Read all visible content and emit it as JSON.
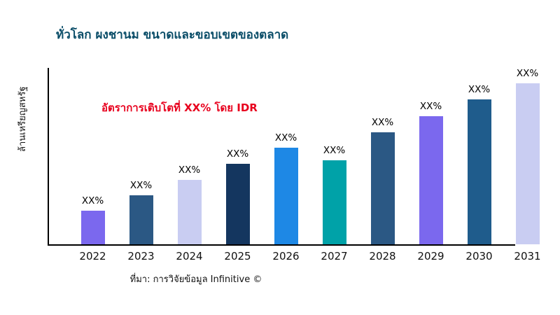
{
  "chart_data": {
    "type": "bar",
    "title": "ทั่วโลก ผงชานม ขนาดและขอบเขตของตลาด",
    "title_color": "#0a4d68",
    "xlabel": "",
    "ylabel": "ล้านเหรียญสหรัฐ",
    "annotation": "อัตราการเติบโตที่ XX% โดย IDR",
    "annotation_color": "#e8001d",
    "categories": [
      "2022",
      "2023",
      "2024",
      "2025",
      "2026",
      "2027",
      "2028",
      "2029",
      "2030",
      "2031"
    ],
    "bar_labels": [
      "XX%",
      "XX%",
      "XX%",
      "XX%",
      "XX%",
      "XX%",
      "XX%",
      "XX%",
      "XX%",
      "XX%"
    ],
    "values": [
      48,
      70,
      92,
      115,
      138,
      120,
      160,
      183,
      207,
      230
    ],
    "values_note": "actual numeric values are masked as XX% in the chart; values are relative bar heights estimated from pixels",
    "bar_colors": [
      "#7b68ee",
      "#2b5884",
      "#c9cdf2",
      "#14365f",
      "#1e88e5",
      "#00a2a8",
      "#2b5884",
      "#7b68ee",
      "#1f5c8c",
      "#c9cdf2"
    ],
    "ylim": [
      0,
      240
    ],
    "grid": false,
    "legend": null
  },
  "footer": {
    "source": "ที่มา: การวิจัยข้อมูล Infinitive ©"
  }
}
